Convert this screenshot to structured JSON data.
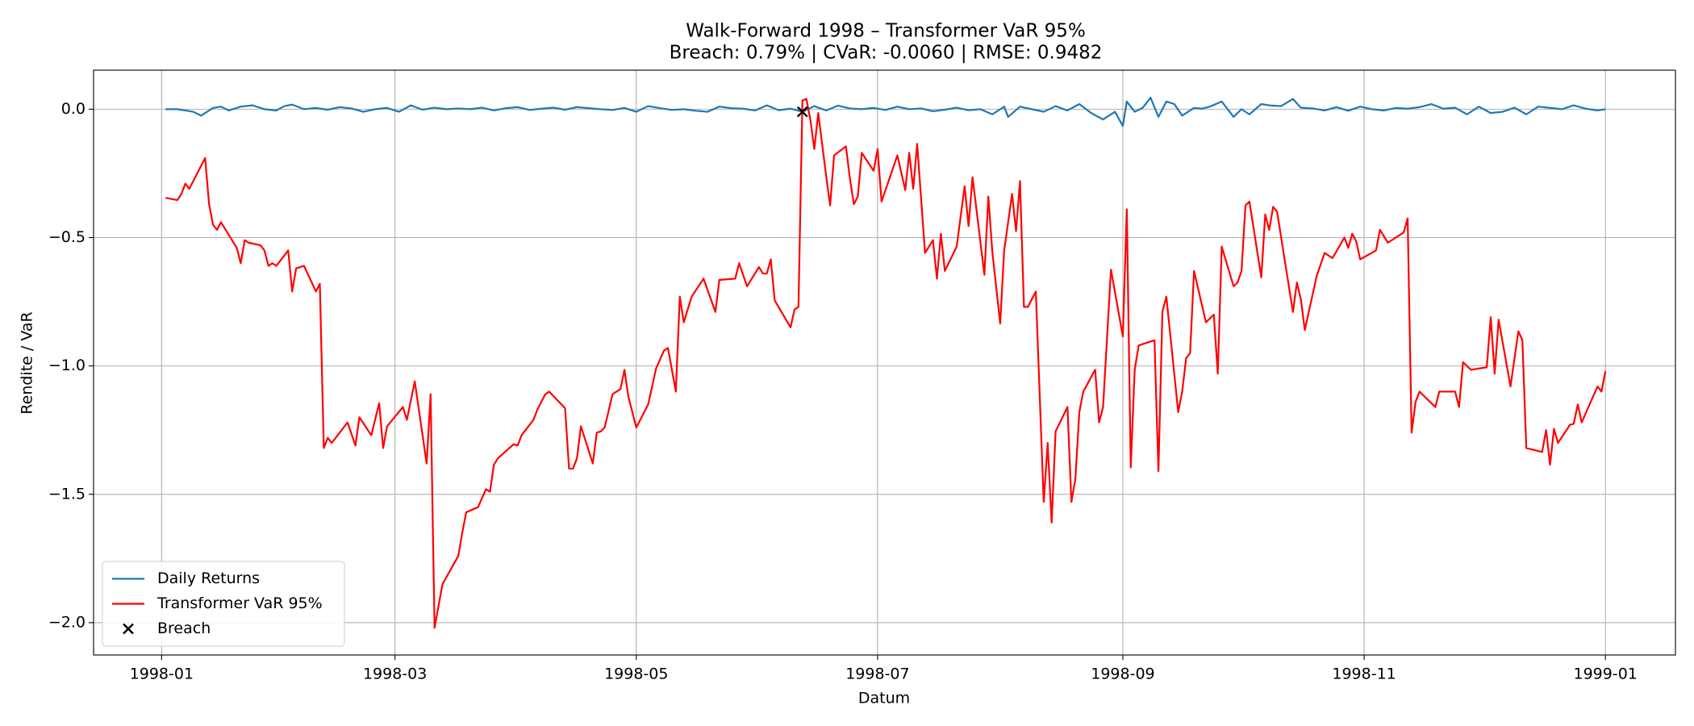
{
  "chart_data": {
    "type": "line",
    "title": "Walk-Forward 1998 – Transformer VaR 95%",
    "subtitle": "Breach: 0.79% | CVaR: -0.0060 | RMSE: 0.9482",
    "x_label": "Datum",
    "y_label": "Rendite / VaR",
    "xlim": [
      -17.2,
      382.7
    ],
    "ylim": [
      -2.126,
      0.152
    ],
    "xticks": [
      {
        "value": 0,
        "label": "1998-01"
      },
      {
        "value": 59,
        "label": "1998-03"
      },
      {
        "value": 120,
        "label": "1998-05"
      },
      {
        "value": 181,
        "label": "1998-07"
      },
      {
        "value": 243,
        "label": "1998-09"
      },
      {
        "value": 304,
        "label": "1998-11"
      },
      {
        "value": 365,
        "label": "1999-01"
      }
    ],
    "yticks": [
      {
        "value": -2.0,
        "label": "−2.0"
      },
      {
        "value": -1.5,
        "label": "−1.5"
      },
      {
        "value": -1.0,
        "label": "−1.0"
      },
      {
        "value": -0.5,
        "label": "−0.5"
      },
      {
        "value": 0.0,
        "label": "0.0"
      }
    ],
    "grid": true,
    "legend": "lower left",
    "series": [
      {
        "name": "Daily Returns",
        "color": "#1f77b4",
        "x": [
          1,
          4,
          6,
          8,
          10,
          13,
          15,
          17,
          20,
          23,
          26,
          29,
          31,
          33,
          36,
          39,
          42,
          45,
          48,
          51,
          54,
          57,
          60,
          63,
          66,
          69,
          72,
          75,
          78,
          81,
          84,
          87,
          90,
          93,
          96,
          99,
          102,
          105,
          108,
          111,
          114,
          117,
          120,
          123,
          126,
          129,
          132,
          135,
          138,
          141,
          144,
          147,
          150,
          153,
          156,
          159,
          162,
          165,
          168,
          171,
          174,
          177,
          180,
          183,
          186,
          189,
          192,
          195,
          198,
          201,
          204,
          207,
          210,
          213,
          214,
          217,
          220,
          223,
          226,
          229,
          232,
          235,
          238,
          241,
          243,
          244,
          246,
          248,
          250,
          252,
          254,
          256,
          258,
          261,
          263,
          265,
          268,
          271,
          273,
          275,
          278,
          280,
          283,
          286,
          288,
          291,
          294,
          297,
          300,
          303,
          306,
          309,
          312,
          315,
          318,
          321,
          324,
          327,
          330,
          333,
          336,
          339,
          342,
          345,
          348,
          351,
          354,
          357,
          360,
          363,
          365
        ],
        "values": [
          0.0,
          0.0,
          -0.005,
          -0.01,
          -0.025,
          0.005,
          0.01,
          -0.005,
          0.01,
          0.015,
          0.0,
          -0.005,
          0.012,
          0.018,
          0.0,
          0.005,
          -0.002,
          0.008,
          0.003,
          -0.01,
          0.0,
          0.005,
          -0.01,
          0.015,
          -0.002,
          0.006,
          0.0,
          0.003,
          0.0,
          0.006,
          -0.005,
          0.004,
          0.008,
          -0.003,
          0.002,
          0.006,
          -0.002,
          0.008,
          0.004,
          0.0,
          -0.003,
          0.005,
          -0.01,
          0.012,
          0.004,
          -0.003,
          0.0,
          -0.006,
          -0.01,
          0.01,
          0.004,
          0.002,
          -0.005,
          0.015,
          -0.004,
          0.002,
          -0.01,
          0.012,
          -0.005,
          0.014,
          0.003,
          0.0,
          0.005,
          -0.003,
          0.01,
          0.0,
          0.003,
          -0.008,
          -0.002,
          0.006,
          -0.004,
          0.0,
          -0.02,
          0.01,
          -0.03,
          0.01,
          0.0,
          -0.01,
          0.012,
          -0.005,
          0.02,
          -0.015,
          -0.04,
          -0.01,
          -0.065,
          0.03,
          -0.01,
          0.005,
          0.045,
          -0.03,
          0.03,
          0.02,
          -0.025,
          0.005,
          0.002,
          0.01,
          0.03,
          -0.03,
          0.0,
          -0.02,
          0.02,
          0.015,
          0.012,
          0.04,
          0.006,
          0.003,
          -0.005,
          0.008,
          -0.006,
          0.01,
          0.0,
          -0.005,
          0.005,
          0.002,
          0.008,
          0.02,
          0.002,
          0.006,
          -0.02,
          0.01,
          -0.015,
          -0.01,
          0.006,
          -0.02,
          0.01,
          0.005,
          0.0,
          0.015,
          0.002,
          -0.005,
          0.0
        ]
      },
      {
        "name": "Transformer VaR 95%",
        "color": "#ff0000",
        "x": [
          1,
          4,
          5,
          6,
          7,
          11,
          12,
          13,
          14,
          15,
          19,
          20,
          21,
          22,
          25,
          26,
          27,
          28,
          29,
          32,
          33,
          34,
          36,
          39,
          40,
          41,
          42,
          43,
          47,
          49,
          50,
          53,
          55,
          56,
          57,
          61,
          62,
          64,
          67,
          68,
          69,
          71,
          75,
          76,
          77,
          80,
          82,
          83,
          84,
          85,
          89,
          90,
          91,
          94,
          95,
          97,
          98,
          102,
          103,
          104,
          105,
          106,
          109,
          110,
          111,
          112,
          114,
          116,
          117,
          118,
          119,
          120,
          123,
          125,
          127,
          128,
          130,
          131,
          132,
          134,
          137,
          140,
          141,
          145,
          146,
          148,
          151,
          152,
          153,
          154,
          155,
          159,
          160,
          161,
          162,
          163,
          164,
          165,
          166,
          168,
          169,
          170,
          173,
          174,
          175,
          176,
          177,
          180,
          181,
          182,
          186,
          188,
          189,
          190,
          191,
          193,
          195,
          196,
          197,
          198,
          201,
          203,
          204,
          205,
          208,
          209,
          210,
          212,
          213,
          215,
          216,
          217,
          218,
          219,
          221,
          223,
          224,
          225,
          226,
          229,
          230,
          231,
          232,
          233,
          236,
          237,
          238,
          240,
          243,
          244,
          245,
          246,
          247,
          251,
          252,
          253,
          254,
          257,
          258,
          259,
          260,
          261,
          264,
          266,
          267,
          268,
          271,
          272,
          273,
          274,
          275,
          278,
          279,
          280,
          281,
          282,
          286,
          287,
          288,
          289,
          292,
          294,
          296,
          299,
          300,
          301,
          302,
          303,
          307,
          308,
          310,
          314,
          315,
          316,
          317,
          318,
          322,
          323,
          327,
          328,
          329,
          331,
          335,
          336,
          337,
          338,
          341,
          343,
          344,
          345,
          349,
          350,
          351,
          352,
          353,
          356,
          357,
          358,
          359,
          363,
          364,
          365
        ],
        "values": [
          -0.345,
          -0.354,
          -0.33,
          -0.29,
          -0.31,
          -0.19,
          -0.37,
          -0.45,
          -0.47,
          -0.44,
          -0.54,
          -0.6,
          -0.51,
          -0.52,
          -0.53,
          -0.55,
          -0.61,
          -0.6,
          -0.61,
          -0.55,
          -0.71,
          -0.62,
          -0.61,
          -0.71,
          -0.68,
          -1.32,
          -1.28,
          -1.3,
          -1.22,
          -1.31,
          -1.2,
          -1.27,
          -1.145,
          -1.32,
          -1.235,
          -1.16,
          -1.21,
          -1.06,
          -1.38,
          -1.11,
          -2.02,
          -1.85,
          -1.74,
          -1.65,
          -1.57,
          -1.55,
          -1.48,
          -1.49,
          -1.385,
          -1.36,
          -1.305,
          -1.31,
          -1.27,
          -1.21,
          -1.17,
          -1.11,
          -1.1,
          -1.165,
          -1.4,
          -1.4,
          -1.36,
          -1.235,
          -1.38,
          -1.26,
          -1.255,
          -1.24,
          -1.11,
          -1.09,
          -1.015,
          -1.12,
          -1.18,
          -1.24,
          -1.15,
          -1.01,
          -0.94,
          -0.93,
          -1.1,
          -0.73,
          -0.83,
          -0.73,
          -0.66,
          -0.79,
          -0.665,
          -0.66,
          -0.6,
          -0.69,
          -0.615,
          -0.64,
          -0.64,
          -0.585,
          -0.745,
          -0.85,
          -0.78,
          -0.77,
          0.034,
          0.04,
          -0.04,
          -0.155,
          -0.015,
          -0.26,
          -0.375,
          -0.18,
          -0.145,
          -0.27,
          -0.37,
          -0.34,
          -0.17,
          -0.24,
          -0.155,
          -0.36,
          -0.18,
          -0.315,
          -0.17,
          -0.31,
          -0.135,
          -0.56,
          -0.51,
          -0.66,
          -0.485,
          -0.63,
          -0.535,
          -0.3,
          -0.455,
          -0.265,
          -0.645,
          -0.34,
          -0.555,
          -0.835,
          -0.55,
          -0.33,
          -0.475,
          -0.28,
          -0.77,
          -0.77,
          -0.71,
          -1.53,
          -1.3,
          -1.61,
          -1.255,
          -1.16,
          -1.53,
          -1.44,
          -1.18,
          -1.1,
          -1.015,
          -1.22,
          -1.16,
          -0.625,
          -0.885,
          -0.39,
          -1.395,
          -1.015,
          -0.92,
          -0.9,
          -1.41,
          -0.79,
          -0.73,
          -1.18,
          -1.1,
          -0.97,
          -0.95,
          -0.63,
          -0.83,
          -0.8,
          -1.03,
          -0.535,
          -0.69,
          -0.675,
          -0.63,
          -0.375,
          -0.36,
          -0.655,
          -0.41,
          -0.47,
          -0.38,
          -0.4,
          -0.79,
          -0.675,
          -0.74,
          -0.86,
          -0.65,
          -0.56,
          -0.58,
          -0.5,
          -0.54,
          -0.485,
          -0.515,
          -0.585,
          -0.55,
          -0.47,
          -0.52,
          -0.48,
          -0.425,
          -1.26,
          -1.14,
          -1.1,
          -1.16,
          -1.1,
          -1.1,
          -1.16,
          -0.985,
          -1.015,
          -1.005,
          -0.81,
          -1.03,
          -0.82,
          -1.08,
          -0.865,
          -0.9,
          -1.32,
          -1.335,
          -1.25,
          -1.385,
          -1.245,
          -1.3,
          -1.23,
          -1.225,
          -1.15,
          -1.22,
          -1.08,
          -1.1,
          -1.02
        ]
      },
      {
        "name": "Breach",
        "color": "#000000",
        "marker": "x",
        "x": [
          162
        ],
        "values": [
          -0.01
        ]
      }
    ]
  }
}
